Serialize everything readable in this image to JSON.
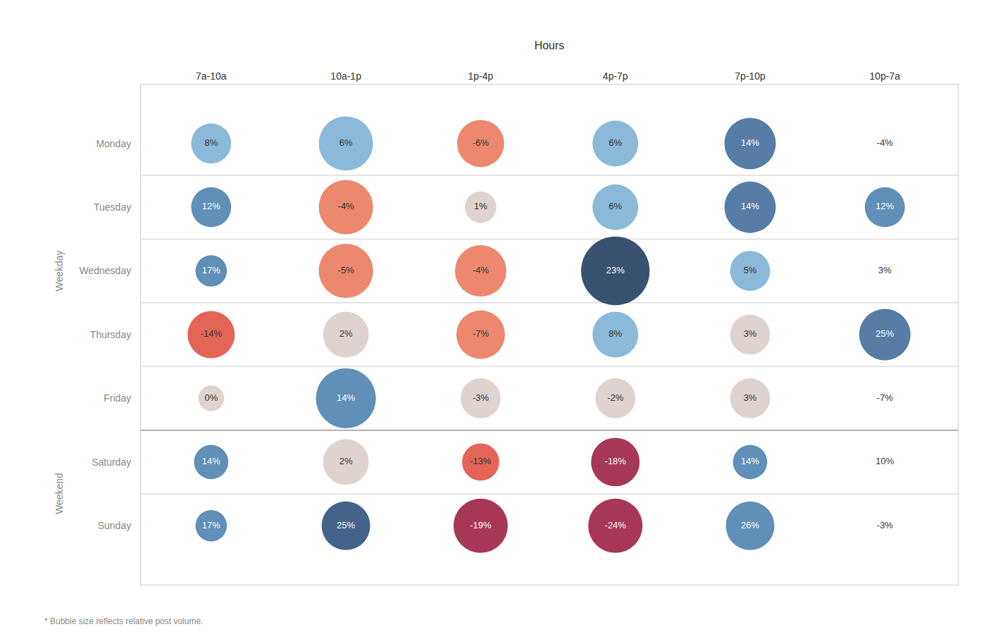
{
  "chart_data": {
    "type": "bubble",
    "x_label": "Hours",
    "x": [
      "7a-10a",
      "10a-1p",
      "1p-4p",
      "4p-7p",
      "7p-10p",
      "10p-7a"
    ],
    "y": [
      "Monday",
      "Tuesday",
      "Wednesday",
      "Thursday",
      "Friday",
      "Saturday",
      "Sunday"
    ],
    "values": [
      [
        8,
        6,
        -6,
        6,
        14,
        -4
      ],
      [
        12,
        -4,
        1,
        6,
        14,
        12
      ],
      [
        17,
        -5,
        -4,
        23,
        5,
        3
      ],
      [
        -14,
        2,
        -7,
        8,
        3,
        25
      ],
      [
        0,
        14,
        -3,
        -2,
        3,
        -7
      ],
      [
        14,
        2,
        -13,
        -18,
        14,
        10
      ],
      [
        17,
        25,
        -19,
        -24,
        26,
        -3
      ]
    ],
    "value_labels": [
      [
        "8%",
        "6%",
        "-6%",
        "6%",
        "14%",
        "-4%"
      ],
      [
        "12%",
        "-4%",
        "1%",
        "6%",
        "14%",
        "12%"
      ],
      [
        "17%",
        "-5%",
        "-4%",
        "23%",
        "5%",
        "3%"
      ],
      [
        "-14%",
        "2%",
        "-7%",
        "8%",
        "3%",
        "25%"
      ],
      [
        "0%",
        "14%",
        "-3%",
        "-2%",
        "3%",
        "-7%"
      ],
      [
        "14%",
        "2%",
        "-13%",
        "-18%",
        "14%",
        "10%"
      ],
      [
        "17%",
        "25%",
        "-19%",
        "-24%",
        "26%",
        "-3%"
      ]
    ],
    "sizes": [
      [
        0.28,
        0.38,
        0.33,
        0.32,
        0.36,
        0.0
      ],
      [
        0.28,
        0.38,
        0.22,
        0.32,
        0.36,
        0.28
      ],
      [
        0.22,
        0.38,
        0.36,
        0.48,
        0.28,
        0.0
      ],
      [
        0.33,
        0.32,
        0.34,
        0.32,
        0.28,
        0.36
      ],
      [
        0.18,
        0.42,
        0.28,
        0.28,
        0.28,
        0.0
      ],
      [
        0.24,
        0.32,
        0.26,
        0.34,
        0.24,
        0.0
      ],
      [
        0.22,
        0.34,
        0.38,
        0.38,
        0.34,
        0.0
      ]
    ],
    "colors": [
      [
        "#7bafd4",
        "#7bafd4",
        "#e8775a",
        "#7bafd4",
        "#3d6b99",
        null
      ],
      [
        "#4a7fad",
        "#e8775a",
        "#d9cdc8",
        "#7bafd4",
        "#3d6b99",
        "#4a7fad"
      ],
      [
        "#4a7fad",
        "#e8775a",
        "#e8775a",
        "#1e3a5c",
        "#7bafd4",
        null
      ],
      [
        "#e05040",
        "#d9cdc8",
        "#e8775a",
        "#7bafd4",
        "#d9cdc8",
        "#3d6b99"
      ],
      [
        "#d9cdc8",
        "#4a7fad",
        "#d9cdc8",
        "#d9cdc8",
        "#d9cdc8",
        null
      ],
      [
        "#4a7fad",
        "#d9cdc8",
        "#e05040",
        "#9b1b40",
        "#4a7fad",
        null
      ],
      [
        "#4a7fad",
        "#2a4d7a",
        "#9b1b40",
        "#9b1b40",
        "#4a7fad",
        null
      ]
    ],
    "y_groups": [
      {
        "label": "Weekday",
        "from": "Monday",
        "to": "Friday"
      },
      {
        "label": "Weekend",
        "from": "Saturday",
        "to": "Sunday"
      }
    ],
    "footnote": "* Bubble size reflects relative post volume.",
    "data_labels": true,
    "grid": true
  }
}
